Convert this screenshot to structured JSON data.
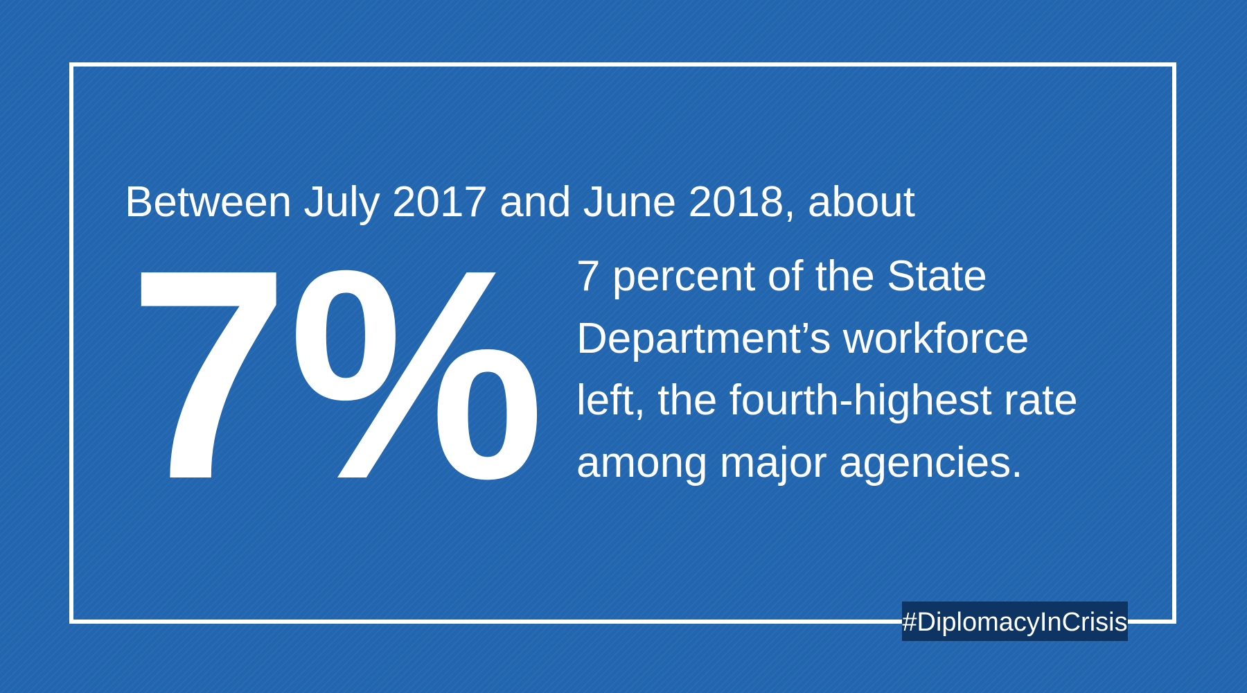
{
  "intro": "Between July 2017 and June 2018, about",
  "stat": "7%",
  "body_lines": [
    "7 percent of the State",
    "Department’s workforce",
    "left, the fourth-highest rate",
    "among major agencies."
  ],
  "hashtag": "#DiplomacyInCrisis"
}
